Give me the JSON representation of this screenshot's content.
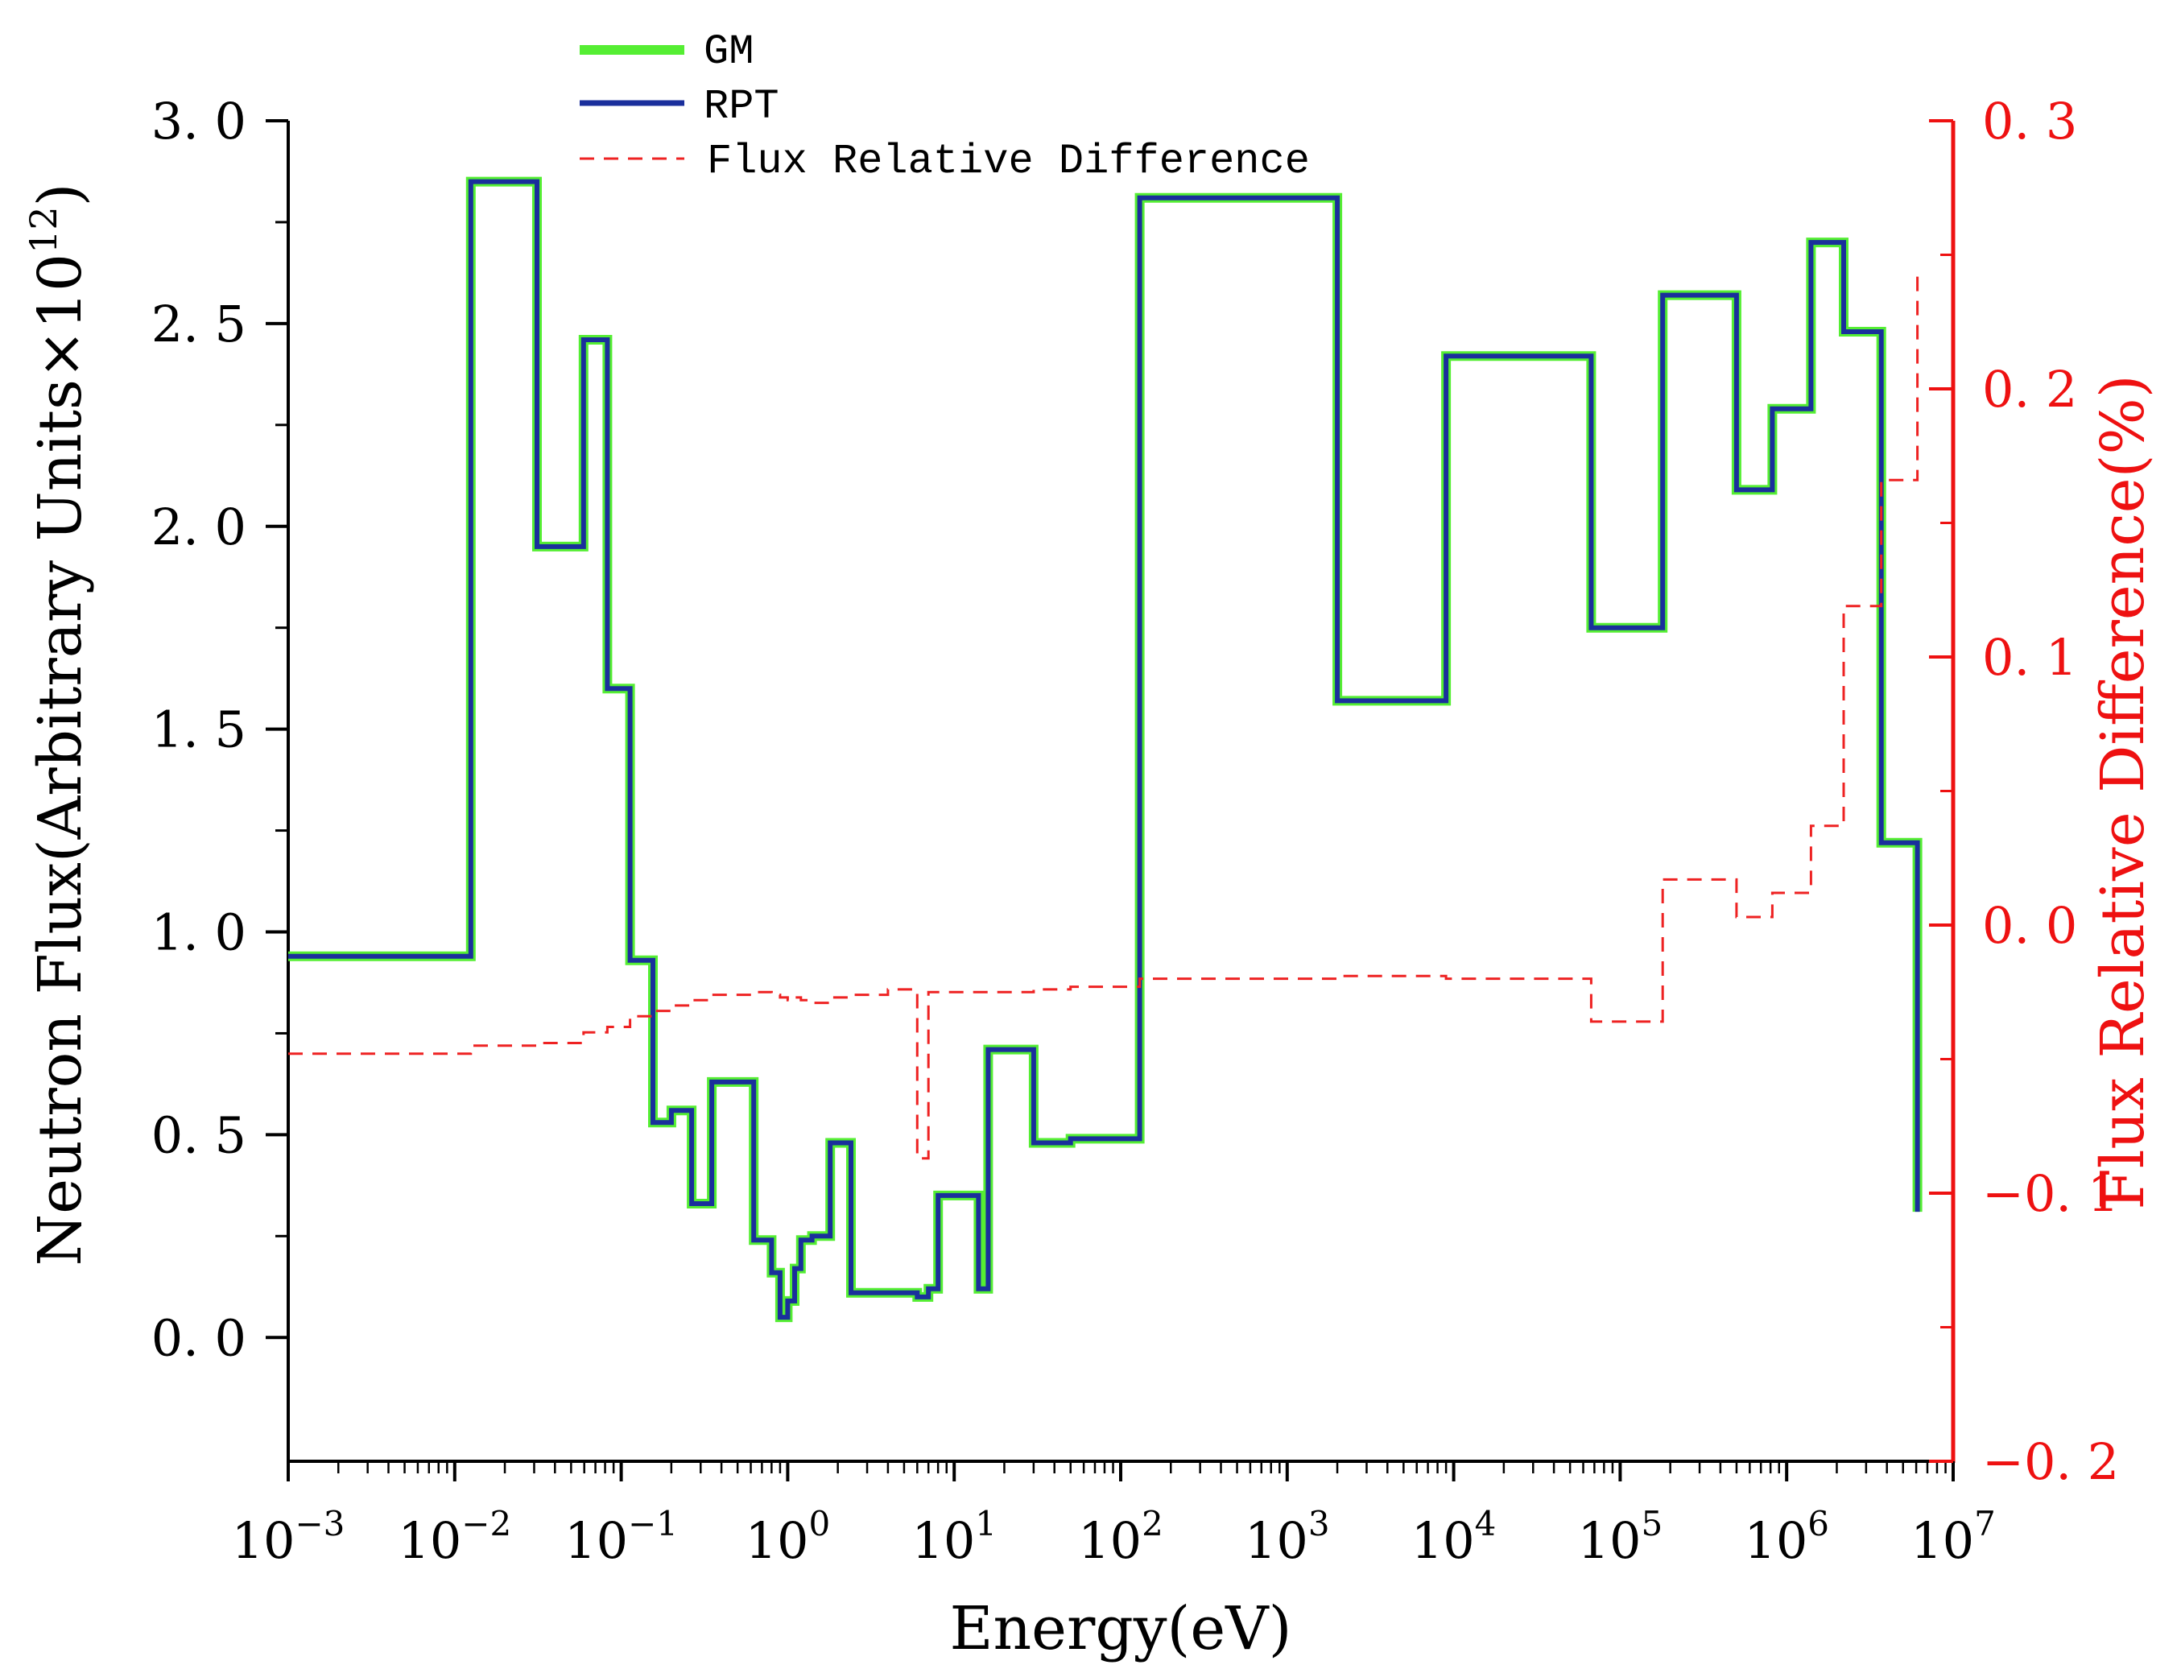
{
  "chart_data": {
    "type": "line",
    "title": "",
    "xlabel": "Energy(eV)",
    "ylabel_left": "Neutron Flux(Arbitrary Units×10",
    "ylabel_left_sup": "12",
    "ylabel_left_close": ")",
    "ylabel_right": "Flux Relative Difference(%)",
    "x_scale": "log",
    "xlim_exp": [
      -3,
      7
    ],
    "x_tick_exponents": [
      "-3",
      "-2",
      "-1",
      "0",
      "1",
      "2",
      "3",
      "4",
      "5",
      "6",
      "7"
    ],
    "x_tick_base": "10",
    "ylim_left": [
      -0.2,
      3.0
    ],
    "y_ticks_left": [
      "0.0",
      "0.5",
      "1.0",
      "1.5",
      "2.0",
      "2.5",
      "3.0"
    ],
    "ylim_right": [
      -0.2,
      0.3
    ],
    "y_ticks_right": [
      "-0.2",
      "-0.1",
      "0.0",
      "0.1",
      "0.2",
      "0.3"
    ],
    "colors": {
      "GM": "#55ee33",
      "RPT": "#1a2f9c",
      "diff": "#ee2222",
      "right_axis": "#ee1111",
      "axis": "#000000"
    },
    "legend": [
      {
        "key": "GM",
        "label": "GM",
        "style": "solid-thick"
      },
      {
        "key": "RPT",
        "label": "RPT",
        "style": "solid"
      },
      {
        "key": "diff",
        "label": "Flux Relative Difference",
        "style": "dashed"
      }
    ],
    "series": [
      {
        "name": "GM / RPT flux (step histogram)",
        "edges": [
          0.001,
          0.0125,
          0.0312,
          0.0594,
          0.0826,
          0.113,
          0.155,
          0.2,
          0.265,
          0.35,
          0.625,
          0.8,
          0.9,
          1.0,
          1.1,
          1.2,
          1.4,
          1.8,
          2.4,
          4.0,
          6.0,
          7.0,
          8.0,
          14.0,
          16.0,
          30.0,
          50.0,
          130.0,
          2000.0,
          9000.0,
          67000.0,
          180000.0,
          500000.0,
          820000.0,
          1400000.0,
          2200000.0,
          3700000.0,
          6100000.0
        ],
        "values": [
          0.94,
          2.85,
          1.95,
          2.46,
          1.6,
          0.93,
          0.53,
          0.56,
          0.33,
          0.63,
          0.24,
          0.16,
          0.05,
          0.09,
          0.17,
          0.24,
          0.25,
          0.48,
          0.11,
          0.11,
          0.1,
          0.12,
          0.35,
          0.12,
          0.71,
          0.48,
          0.49,
          2.81,
          1.57,
          2.42,
          1.75,
          2.57,
          2.09,
          2.29,
          2.7,
          2.48,
          1.22
        ],
        "final_value": 0.31
      },
      {
        "name": "Flux Relative Difference (%)",
        "edges": [
          0.001,
          0.0125,
          0.0312,
          0.0594,
          0.0826,
          0.113,
          0.155,
          0.2,
          0.265,
          0.35,
          0.625,
          0.8,
          0.9,
          1.0,
          1.1,
          1.2,
          1.4,
          1.8,
          2.4,
          4.0,
          6.0,
          7.0,
          8.0,
          14.0,
          16.0,
          30.0,
          50.0,
          130.0,
          2000.0,
          9000.0,
          67000.0,
          180000.0,
          500000.0,
          820000.0,
          1400000.0,
          2200000.0,
          3700000.0,
          6100000.0
        ],
        "values": [
          -0.048,
          -0.045,
          -0.044,
          -0.04,
          -0.038,
          -0.034,
          -0.032,
          -0.03,
          -0.028,
          -0.026,
          -0.025,
          -0.026,
          -0.027,
          -0.028,
          -0.027,
          -0.028,
          -0.029,
          -0.027,
          -0.026,
          -0.024,
          -0.087,
          -0.025,
          -0.025,
          -0.025,
          -0.025,
          -0.024,
          -0.023,
          -0.02,
          -0.019,
          -0.02,
          -0.036,
          0.017,
          0.003,
          0.012,
          0.037,
          0.119,
          0.166
        ],
        "final_value": 0.244
      }
    ]
  }
}
